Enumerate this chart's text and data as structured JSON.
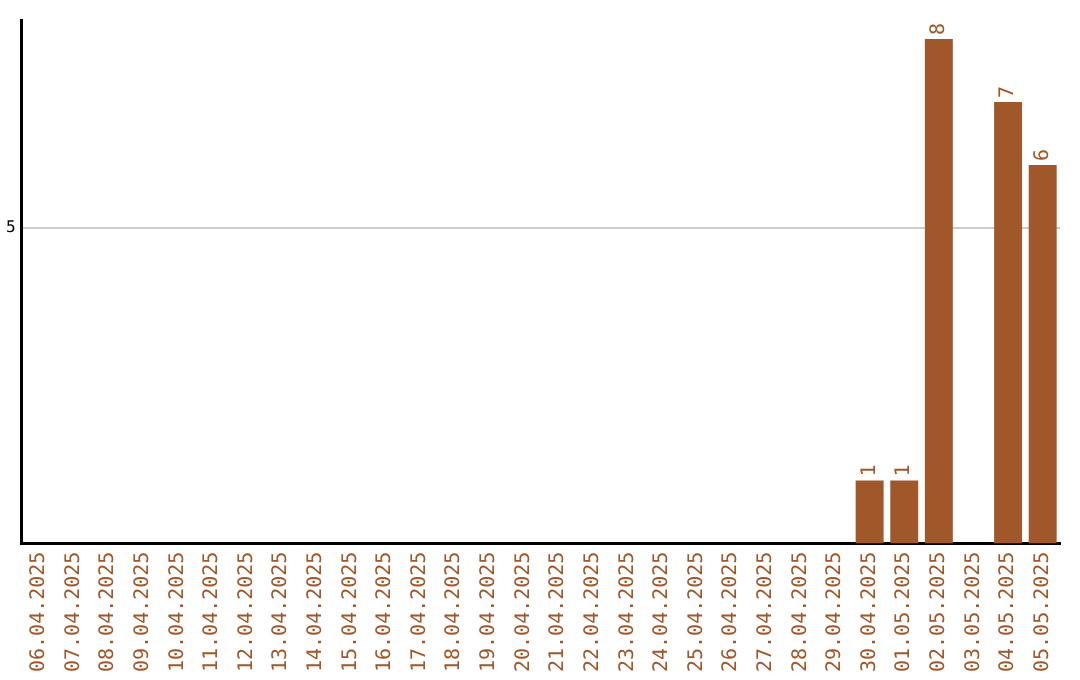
{
  "chart_data": {
    "type": "bar",
    "categories": [
      "06.04.2025",
      "07.04.2025",
      "08.04.2025",
      "09.04.2025",
      "10.04.2025",
      "11.04.2025",
      "12.04.2025",
      "13.04.2025",
      "14.04.2025",
      "15.04.2025",
      "16.04.2025",
      "17.04.2025",
      "18.04.2025",
      "19.04.2025",
      "20.04.2025",
      "21.04.2025",
      "22.04.2025",
      "23.04.2025",
      "24.04.2025",
      "25.04.2025",
      "26.04.2025",
      "27.04.2025",
      "28.04.2025",
      "29.04.2025",
      "30.04.2025",
      "01.05.2025",
      "02.05.2025",
      "03.05.2025",
      "04.05.2025",
      "05.05.2025"
    ],
    "values": [
      null,
      null,
      null,
      null,
      null,
      null,
      null,
      null,
      null,
      null,
      null,
      null,
      null,
      null,
      null,
      null,
      null,
      null,
      null,
      null,
      null,
      null,
      null,
      null,
      1,
      1,
      8,
      null,
      7,
      6
    ],
    "color": "#a0572a",
    "ylim": [
      0,
      8.3
    ],
    "yticks": [
      5
    ],
    "grid": "y",
    "data_labels": true,
    "legend": false
  }
}
